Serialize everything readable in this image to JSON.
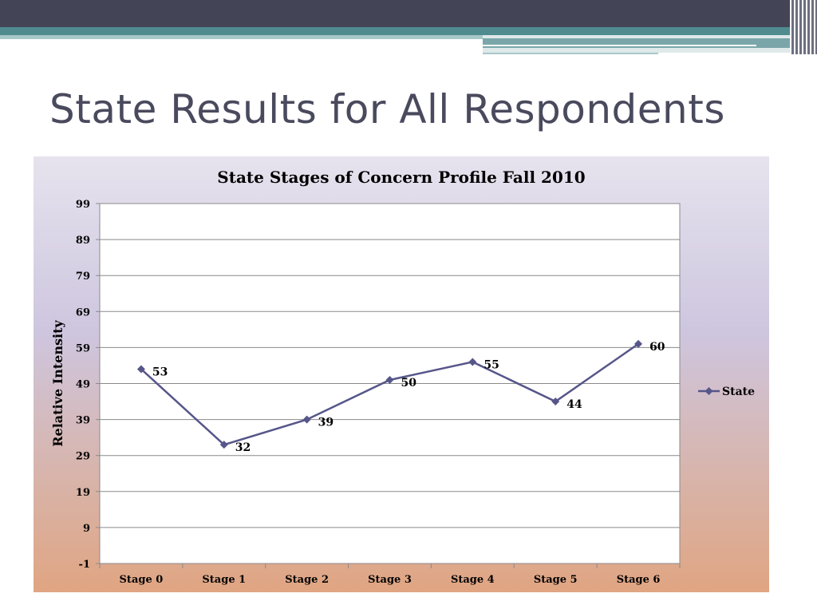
{
  "slide": {
    "title": "State Results for All Respondents"
  },
  "colors": {
    "series": "#56568a",
    "header_dark": "#444457",
    "header_teal": "#4f8b8f"
  },
  "chart_data": {
    "type": "line",
    "title": "State Stages of Concern Profile Fall 2010",
    "xlabel": "",
    "ylabel": "Relative Intensity",
    "categories": [
      "Stage 0",
      "Stage 1",
      "Stage 2",
      "Stage 3",
      "Stage 4",
      "Stage 5",
      "Stage 6"
    ],
    "series": [
      {
        "name": "State",
        "values": [
          53,
          32,
          39,
          50,
          55,
          44,
          60
        ]
      }
    ],
    "yticks": [
      -1,
      9,
      19,
      29,
      39,
      49,
      59,
      69,
      79,
      89,
      99
    ],
    "ylim": [
      -1,
      99
    ],
    "grid": "horizontal",
    "legend": "right",
    "marker": "diamond",
    "data_labels": true
  }
}
